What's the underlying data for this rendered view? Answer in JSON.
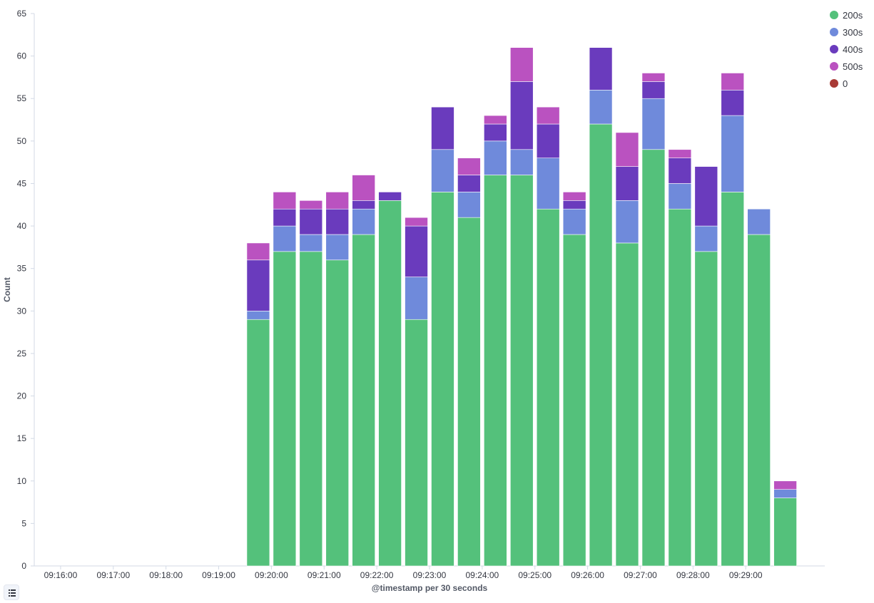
{
  "chart_data": {
    "type": "bar",
    "stacked": true,
    "xlabel": "@timestamp per 30 seconds",
    "ylabel": "Count",
    "ylim": [
      0,
      65
    ],
    "yticks": [
      0,
      5,
      10,
      15,
      20,
      25,
      30,
      35,
      40,
      45,
      50,
      55,
      60,
      65
    ],
    "xticks": [
      "09:16:00",
      "09:17:00",
      "09:18:00",
      "09:19:00",
      "09:20:00",
      "09:21:00",
      "09:22:00",
      "09:23:00",
      "09:24:00",
      "09:25:00",
      "09:26:00",
      "09:27:00",
      "09:28:00",
      "09:29:00"
    ],
    "x_start": "09:15:30",
    "x_end": "09:30:30",
    "categories": [
      "09:19:30",
      "09:20:00",
      "09:20:30",
      "09:21:00",
      "09:21:30",
      "09:22:00",
      "09:22:30",
      "09:23:00",
      "09:23:30",
      "09:24:00",
      "09:24:30",
      "09:25:00",
      "09:25:30",
      "09:26:00",
      "09:26:30",
      "09:27:00",
      "09:27:30",
      "09:28:00",
      "09:28:30",
      "09:29:00",
      "09:29:30",
      "09:30:00"
    ],
    "series": [
      {
        "name": "200s",
        "color": "#54c17b",
        "values": [
          29,
          37,
          37,
          36,
          39,
          43,
          29,
          44,
          41,
          46,
          46,
          42,
          39,
          52,
          38,
          49,
          42,
          37,
          44,
          39,
          8,
          0
        ]
      },
      {
        "name": "300s",
        "color": "#6f8adb",
        "values": [
          1,
          3,
          2,
          3,
          3,
          0,
          5,
          5,
          3,
          4,
          3,
          6,
          3,
          4,
          5,
          6,
          3,
          3,
          9,
          3,
          1,
          0
        ]
      },
      {
        "name": "400s",
        "color": "#6a3bbd",
        "values": [
          6,
          2,
          3,
          3,
          1,
          1,
          6,
          5,
          2,
          2,
          8,
          4,
          1,
          5,
          4,
          2,
          3,
          7,
          3,
          0,
          0,
          0
        ]
      },
      {
        "name": "500s",
        "color": "#ba52c0",
        "values": [
          2,
          2,
          1,
          2,
          3,
          0,
          1,
          0,
          2,
          1,
          4,
          2,
          1,
          0,
          4,
          1,
          1,
          0,
          2,
          0,
          1,
          0
        ]
      },
      {
        "name": "0",
        "color": "#a83a35",
        "values": [
          0,
          0,
          0,
          0,
          0,
          0,
          0,
          0,
          0,
          0,
          0,
          0,
          0,
          0,
          0,
          0,
          0,
          0,
          0,
          0,
          0,
          0
        ]
      }
    ],
    "legend_position": "top-right",
    "grid": false
  },
  "ui": {
    "legend_toggle_icon": "list-icon"
  }
}
